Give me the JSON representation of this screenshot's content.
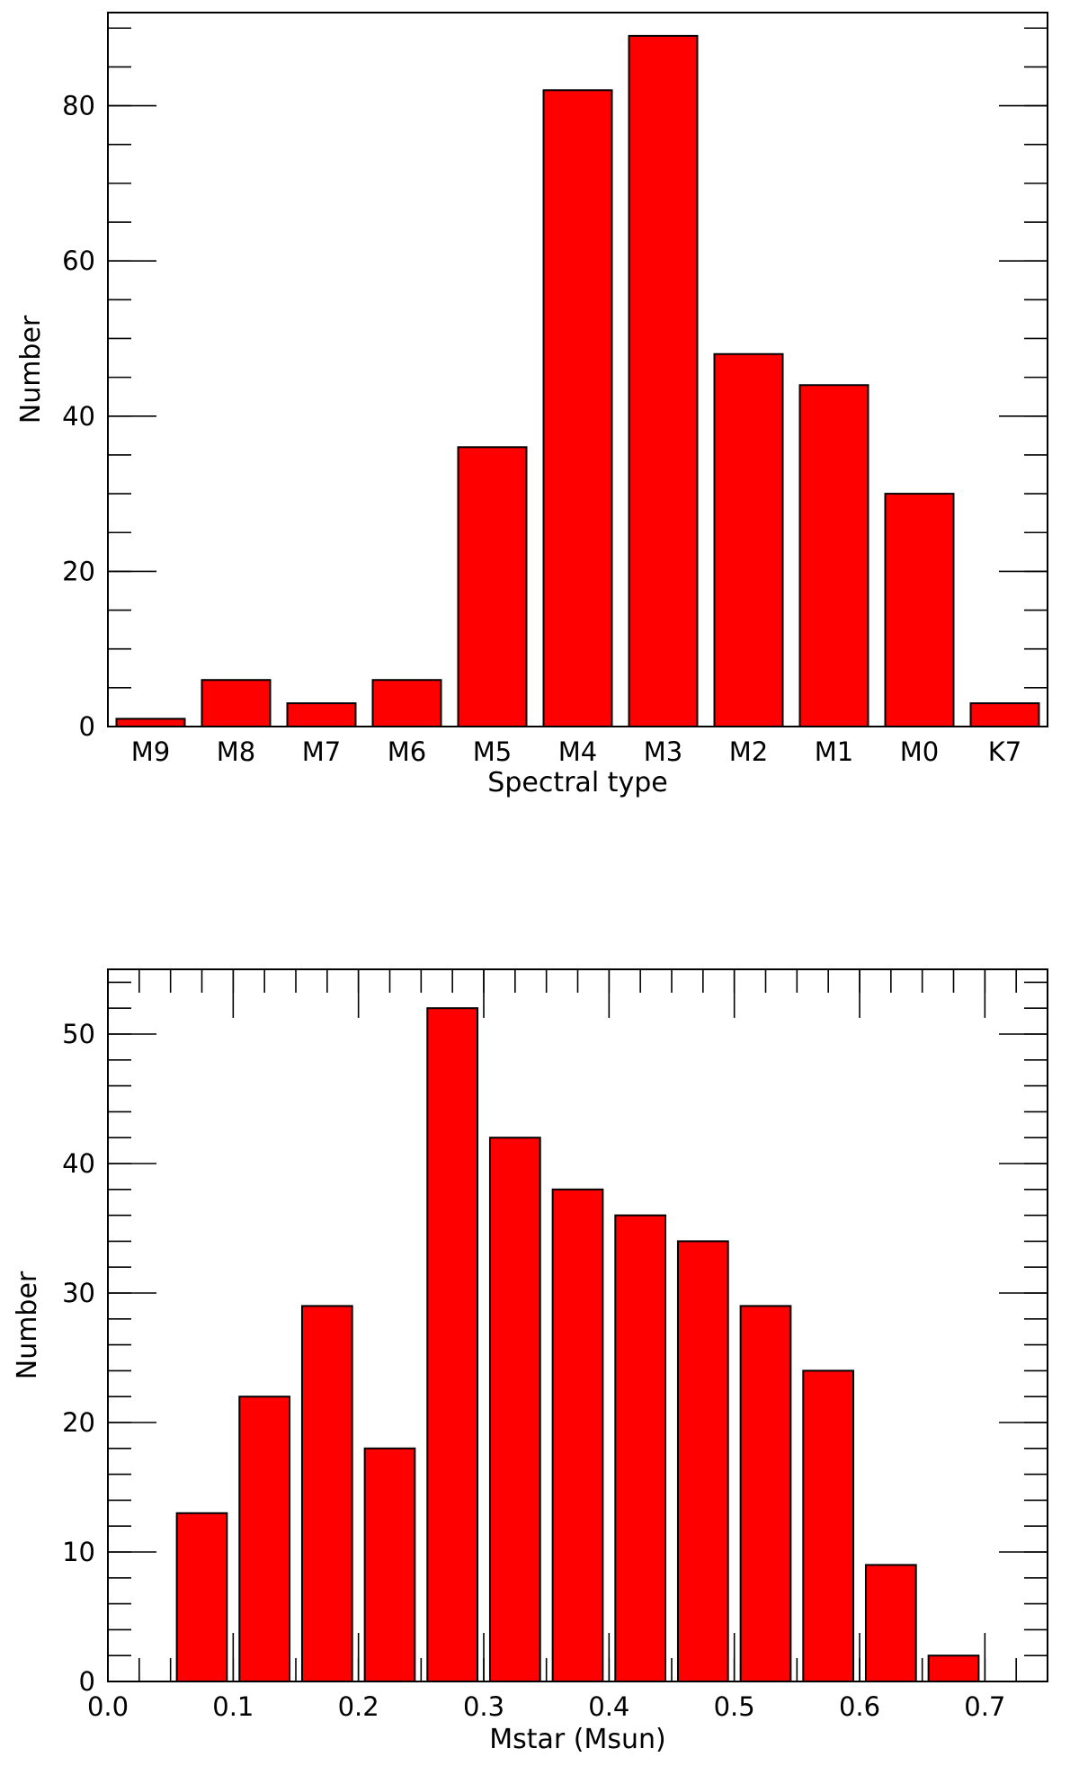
{
  "figure": {
    "bar_color": "#ff0000",
    "edge_color": "#000000",
    "background": "#ffffff"
  },
  "chart_data": [
    {
      "type": "bar",
      "xlabel": "Spectral type",
      "ylabel": "Number",
      "categories": [
        "M9",
        "M8",
        "M7",
        "M6",
        "M5",
        "M4",
        "M3",
        "M2",
        "M1",
        "M0",
        "K7"
      ],
      "values": [
        1,
        6,
        3,
        6,
        36,
        82,
        89,
        48,
        44,
        30,
        3
      ],
      "ylim": [
        0,
        92
      ],
      "yticks": [
        0,
        20,
        40,
        60,
        80
      ],
      "y_minor_step": 5,
      "grid": false,
      "legend": "none"
    },
    {
      "type": "bar",
      "xlabel": "Mstar (Msun)",
      "ylabel": "Number",
      "x": [
        0.075,
        0.125,
        0.175,
        0.225,
        0.275,
        0.325,
        0.375,
        0.425,
        0.475,
        0.525,
        0.575,
        0.625,
        0.675
      ],
      "values": [
        13,
        22,
        29,
        18,
        52,
        42,
        38,
        36,
        34,
        29,
        24,
        9,
        2
      ],
      "bar_width": 0.04,
      "xlim": [
        0.0,
        0.75
      ],
      "ylim": [
        0,
        55
      ],
      "xticks": [
        "0.0",
        "0.1",
        "0.2",
        "0.3",
        "0.4",
        "0.5",
        "0.6",
        "0.7"
      ],
      "yticks": [
        0,
        10,
        20,
        30,
        40,
        50
      ],
      "x_minor_step": 0.025,
      "y_minor_step": 2,
      "grid": false,
      "legend": "none"
    }
  ]
}
